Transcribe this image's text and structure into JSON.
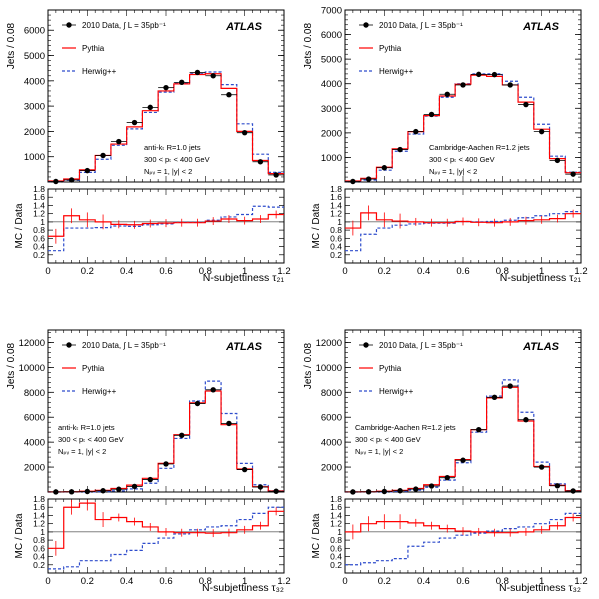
{
  "figure": {
    "data_legend": "2010 Data, ∫ L = 35pb⁻¹",
    "pythia_legend": "Pythia",
    "herwig_legend": "Herwig++",
    "atlas_label": "ATLAS",
    "colors": {
      "data": "#000000",
      "pythia": "#ff0000",
      "herwig": "#2e4ccc"
    }
  },
  "chart_data": [
    {
      "type": "line",
      "panel": "top-left",
      "ylabel": "Jets / 0.08",
      "xlabel": "N-subjettiness τ₂₁",
      "ratio_ylabel": "MC / Data",
      "ylim": [
        0,
        6800
      ],
      "yticks": [
        1000,
        2000,
        3000,
        4000,
        5000,
        6000
      ],
      "ratio_ylim": [
        0,
        1.8
      ],
      "xlim": [
        0,
        1.2
      ],
      "annotations": [
        "anti-kₜ R=1.0 jets",
        "300 < pₜ < 400 GeV",
        "Nₚᵥ = 1, |y| < 2"
      ],
      "bin_edges": [
        0.0,
        0.08,
        0.16,
        0.24,
        0.32,
        0.4,
        0.48,
        0.56,
        0.64,
        0.72,
        0.8,
        0.88,
        0.96,
        1.04,
        1.12,
        1.2
      ],
      "series": [
        {
          "name": "2010 Data",
          "values": [
            20,
            80,
            450,
            1050,
            1600,
            2350,
            2950,
            3730,
            3940,
            4330,
            4200,
            3450,
            1950,
            800,
            280
          ]
        },
        {
          "name": "Pythia",
          "values": [
            40,
            120,
            480,
            1050,
            1500,
            2180,
            2820,
            3600,
            3880,
            4250,
            4280,
            3700,
            2000,
            850,
            330
          ]
        },
        {
          "name": "Herwig++",
          "values": [
            20,
            70,
            380,
            900,
            1450,
            2100,
            2750,
            3550,
            3900,
            4280,
            4350,
            3850,
            2300,
            1100,
            380
          ]
        }
      ],
      "ratio_series": [
        {
          "name": "Pythia",
          "values": [
            0.65,
            1.15,
            1.05,
            1.0,
            0.94,
            0.93,
            0.96,
            0.97,
            0.98,
            0.98,
            1.02,
            1.07,
            1.03,
            1.07,
            1.18
          ]
        },
        {
          "name": "Herwig++",
          "values": [
            0.3,
            0.85,
            0.85,
            0.86,
            0.9,
            0.89,
            0.93,
            0.95,
            0.99,
            0.99,
            1.04,
            1.12,
            1.18,
            1.38,
            1.36
          ]
        }
      ]
    },
    {
      "type": "line",
      "panel": "top-right",
      "ylabel": "Jets / 0.08",
      "xlabel": "N-subjettiness τ₂₁",
      "ratio_ylabel": "MC / Data",
      "ylim": [
        0,
        7000
      ],
      "yticks": [
        1000,
        2000,
        3000,
        4000,
        5000,
        6000,
        7000
      ],
      "ratio_ylim": [
        0,
        1.8
      ],
      "xlim": [
        0,
        1.2
      ],
      "annotations": [
        "Cambridge-Aachen R=1.2 jets",
        "300 < pₜ < 400 GeV",
        "Nₚᵥ = 1, |y| < 2"
      ],
      "bin_edges": [
        0.0,
        0.08,
        0.16,
        0.24,
        0.32,
        0.4,
        0.48,
        0.56,
        0.64,
        0.72,
        0.8,
        0.88,
        0.96,
        1.04,
        1.12,
        1.2
      ],
      "series": [
        {
          "name": "2010 Data",
          "values": [
            20,
            120,
            580,
            1320,
            2050,
            2750,
            3570,
            3950,
            4380,
            4370,
            3950,
            3150,
            2050,
            880,
            320
          ]
        },
        {
          "name": "Pythia",
          "values": [
            40,
            150,
            600,
            1350,
            2050,
            2700,
            3500,
            3980,
            4350,
            4300,
            3950,
            3250,
            2150,
            950,
            380
          ]
        },
        {
          "name": "Herwig++",
          "values": [
            20,
            80,
            480,
            1250,
            1950,
            2680,
            3450,
            4000,
            4400,
            4400,
            4100,
            3450,
            2350,
            1050,
            400
          ]
        }
      ],
      "ratio_series": [
        {
          "name": "Pythia",
          "values": [
            0.85,
            1.22,
            1.05,
            1.02,
            1.0,
            0.98,
            0.98,
            1.01,
            0.99,
            0.98,
            1.0,
            1.03,
            1.05,
            1.08,
            1.2
          ]
        },
        {
          "name": "Herwig++",
          "values": [
            0.3,
            0.7,
            0.85,
            0.92,
            0.95,
            0.97,
            0.97,
            1.01,
            1.0,
            1.01,
            1.04,
            1.1,
            1.15,
            1.2,
            1.25
          ]
        }
      ]
    },
    {
      "type": "line",
      "panel": "bottom-left",
      "ylabel": "Jets / 0.08",
      "xlabel": "N-subjettiness τ₃₂",
      "ratio_ylabel": "MC / Data",
      "ylim": [
        0,
        13000
      ],
      "yticks": [
        2000,
        4000,
        6000,
        8000,
        10000,
        12000
      ],
      "ratio_ylim": [
        0,
        1.8
      ],
      "xlim": [
        0,
        1.2
      ],
      "annotations": [
        "anti-kₜ R=1.0 jets",
        "300 < pₜ < 400 GeV",
        "Nₚᵥ = 1, |y| < 2"
      ],
      "bin_edges": [
        0.0,
        0.08,
        0.16,
        0.24,
        0.32,
        0.4,
        0.48,
        0.56,
        0.64,
        0.72,
        0.8,
        0.88,
        0.96,
        1.04,
        1.12,
        1.2
      ],
      "series": [
        {
          "name": "2010 Data",
          "values": [
            5,
            15,
            40,
            100,
            220,
            450,
            1000,
            2250,
            4550,
            7100,
            8200,
            5500,
            1800,
            400,
            60
          ]
        },
        {
          "name": "Pythia",
          "values": [
            8,
            25,
            60,
            130,
            280,
            550,
            1100,
            2300,
            4600,
            7150,
            8100,
            5400,
            1850,
            420,
            80
          ]
        },
        {
          "name": "Herwig++",
          "values": [
            1,
            4,
            10,
            30,
            90,
            250,
            700,
            1900,
            4300,
            7300,
            8900,
            6300,
            2300,
            580,
            90
          ]
        }
      ],
      "ratio_series": [
        {
          "name": "Pythia",
          "values": [
            0.6,
            1.6,
            1.7,
            1.3,
            1.35,
            1.25,
            1.12,
            1.0,
            0.98,
            0.98,
            0.97,
            0.98,
            1.05,
            1.15,
            1.5
          ]
        },
        {
          "name": "Herwig++",
          "values": [
            0.1,
            0.15,
            0.3,
            0.3,
            0.45,
            0.55,
            0.72,
            0.85,
            0.95,
            1.05,
            1.12,
            1.15,
            1.3,
            1.45,
            1.6
          ]
        }
      ]
    },
    {
      "type": "line",
      "panel": "bottom-right",
      "ylabel": "Jets / 0.08",
      "xlabel": "N-subjettiness τ₃₂",
      "ratio_ylabel": "MC / Data",
      "ylim": [
        0,
        13000
      ],
      "yticks": [
        2000,
        4000,
        6000,
        8000,
        10000,
        12000
      ],
      "ratio_ylim": [
        0,
        1.8
      ],
      "xlim": [
        0,
        1.2
      ],
      "annotations": [
        "Cambridge-Aachen R=1.2 jets",
        "300 < pₜ < 400 GeV",
        "Nₚᵥ = 1, |y| < 2"
      ],
      "bin_edges": [
        0.0,
        0.08,
        0.16,
        0.24,
        0.32,
        0.4,
        0.48,
        0.56,
        0.64,
        0.72,
        0.8,
        0.88,
        0.96,
        1.04,
        1.12,
        1.2
      ],
      "series": [
        {
          "name": "2010 Data",
          "values": [
            5,
            15,
            40,
            100,
            230,
            480,
            1150,
            2550,
            5000,
            7600,
            8500,
            5800,
            2000,
            500,
            80
          ]
        },
        {
          "name": "Pythia",
          "values": [
            8,
            25,
            60,
            130,
            280,
            580,
            1250,
            2600,
            5000,
            7550,
            8400,
            5700,
            2050,
            530,
            100
          ]
        },
        {
          "name": "Herwig++",
          "values": [
            1,
            4,
            10,
            40,
            150,
            380,
            950,
            2350,
            4800,
            7700,
            9000,
            6400,
            2400,
            650,
            110
          ]
        }
      ],
      "ratio_series": [
        {
          "name": "Pythia",
          "values": [
            1.0,
            1.2,
            1.25,
            1.25,
            1.22,
            1.15,
            1.08,
            1.02,
            1.0,
            0.98,
            0.98,
            1.0,
            1.05,
            1.15,
            1.35
          ]
        },
        {
          "name": "Herwig++",
          "values": [
            0.2,
            0.25,
            0.3,
            0.35,
            0.65,
            0.75,
            0.85,
            0.92,
            0.97,
            1.02,
            1.08,
            1.12,
            1.2,
            1.3,
            1.45
          ]
        }
      ]
    }
  ]
}
